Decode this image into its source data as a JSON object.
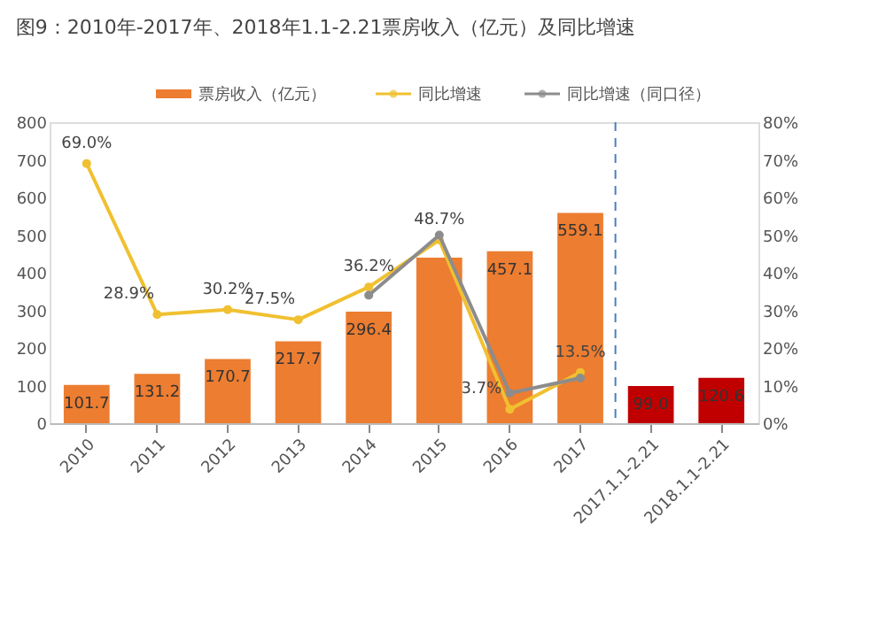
{
  "chart_data": {
    "type": "bar",
    "title": "图9：2010年-2017年、2018年1.1-2.21票房收入（亿元）及同比增速",
    "categories": [
      "2010",
      "2011",
      "2012",
      "2013",
      "2014",
      "2015",
      "2016",
      "2017",
      "2017.1.1-2.21",
      "2018.1.1-2.21"
    ],
    "series": [
      {
        "name": "票房收入（亿元）",
        "color": "#ed7d31",
        "colors": [
          "#ed7d31",
          "#ed7d31",
          "#ed7d31",
          "#ed7d31",
          "#ed7d31",
          "#ed7d31",
          "#ed7d31",
          "#ed7d31",
          "#c00000",
          "#c00000"
        ],
        "values": [
          101.7,
          131.2,
          170.7,
          217.7,
          296.4,
          440,
          457.1,
          559.1,
          99.0,
          120.6
        ],
        "value_labels": [
          "101.7",
          "131.2",
          "170.7",
          "217.7",
          "296.4",
          null,
          "457.1",
          "559.1",
          "99.0",
          "120.6"
        ]
      },
      {
        "name": "同比增速",
        "type": "line",
        "axis": "y2",
        "color": "#f0c030",
        "marker": "circle",
        "values": [
          69.0,
          28.9,
          30.2,
          27.5,
          36.2,
          48.7,
          3.7,
          13.5,
          null,
          null
        ],
        "value_labels": [
          "69.0%",
          "28.9%",
          "30.2%",
          "27.5%",
          "36.2%",
          "48.7%",
          "3.7%",
          "13.5%",
          null,
          null
        ]
      },
      {
        "name": "同比增速（同口径）",
        "type": "line",
        "axis": "y2",
        "color": "#8c8c8c",
        "marker": "circle",
        "values": [
          null,
          null,
          null,
          null,
          34,
          50,
          8,
          12,
          null,
          null
        ]
      }
    ],
    "ylim": [
      0,
      800
    ],
    "yticks": [
      0,
      100,
      200,
      300,
      400,
      500,
      600,
      700,
      800
    ],
    "y2lim": [
      0,
      80
    ],
    "y2ticks": [
      {
        "value": 0,
        "label": "0%"
      },
      {
        "value": 10,
        "label": "10%"
      },
      {
        "value": 20,
        "label": "20%"
      },
      {
        "value": 30,
        "label": "30%"
      },
      {
        "value": 40,
        "label": "40%"
      },
      {
        "value": 50,
        "label": "50%"
      },
      {
        "value": 60,
        "label": "60%"
      },
      {
        "value": 70,
        "label": "70%"
      },
      {
        "value": 80,
        "label": "80%"
      }
    ],
    "ref_lines": [
      {
        "axis": "x",
        "value": "2017.1.1-2.21",
        "color": "#4a7ebb",
        "line_style": "dashed"
      }
    ],
    "legend": "top",
    "grid": false
  }
}
